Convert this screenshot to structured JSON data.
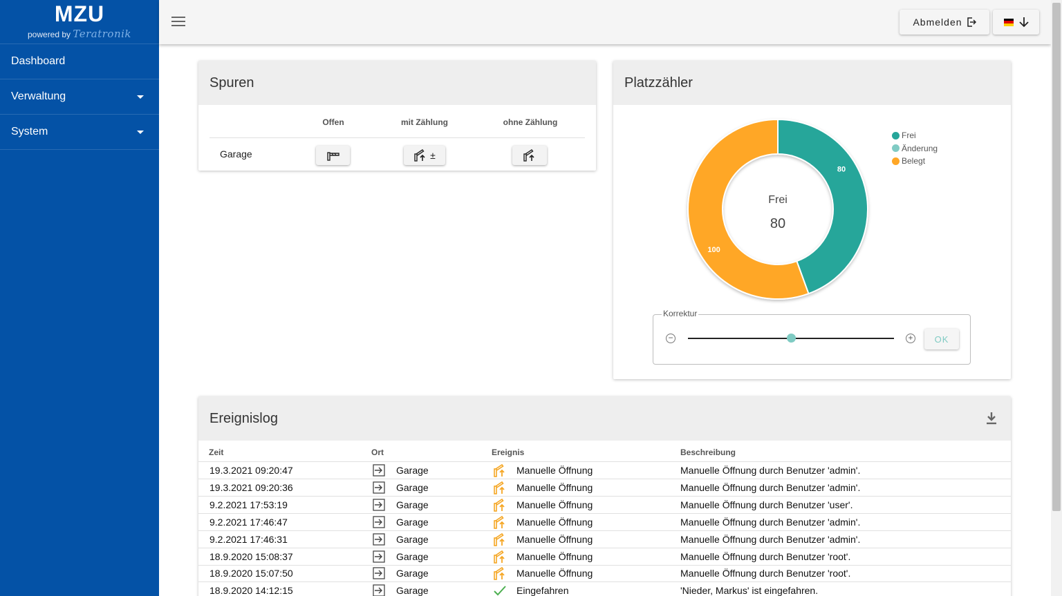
{
  "sidebar": {
    "brand": "MZU",
    "powered_by": "powered by",
    "logo_text": "Teratronik",
    "items": [
      {
        "label": "Dashboard",
        "has_submenu": false
      },
      {
        "label": "Verwaltung",
        "has_submenu": true
      },
      {
        "label": "System",
        "has_submenu": true
      }
    ]
  },
  "header": {
    "logout_label": "Abmelden",
    "language_flag": "de"
  },
  "spuren": {
    "title": "Spuren",
    "columns": [
      "Offen",
      "mit Zählung",
      "ohne Zählung"
    ],
    "rows": [
      {
        "label": "Garage",
        "mit_zaehlung_suffix": "±"
      }
    ]
  },
  "platzzaehler": {
    "title": "Platzzähler",
    "center_label": "Frei",
    "center_value": "80",
    "korrektur_label": "Korrektur",
    "ok_label": "OK",
    "slider_position": 0.5,
    "colors": {
      "frei": "#26a69a",
      "aenderung": "#80cbc4",
      "belegt": "#ffa726"
    },
    "chart_data": {
      "type": "pie",
      "donut": true,
      "categories": [
        "Frei",
        "Änderung",
        "Belegt"
      ],
      "values": [
        80,
        0,
        100
      ],
      "data_labels": [
        "80",
        "",
        "100"
      ],
      "legend": "top-right"
    }
  },
  "ereignislog": {
    "title": "Ereignislog",
    "headers": {
      "zeit": "Zeit",
      "ort": "Ort",
      "ereignis": "Ereignis",
      "beschreibung": "Beschreibung"
    },
    "rows": [
      {
        "zeit": "19.3.2021 09:20:47",
        "ort": "Garage",
        "icon": "barrier-up-icon",
        "ereignis": "Manuelle Öffnung",
        "beschreibung": "Manuelle Öffnung durch Benutzer 'admin'."
      },
      {
        "zeit": "19.3.2021 09:20:36",
        "ort": "Garage",
        "icon": "barrier-up-icon",
        "ereignis": "Manuelle Öffnung",
        "beschreibung": "Manuelle Öffnung durch Benutzer 'admin'."
      },
      {
        "zeit": "9.2.2021 17:53:19",
        "ort": "Garage",
        "icon": "barrier-up-icon",
        "ereignis": "Manuelle Öffnung",
        "beschreibung": "Manuelle Öffnung durch Benutzer 'user'."
      },
      {
        "zeit": "9.2.2021 17:46:47",
        "ort": "Garage",
        "icon": "barrier-up-icon",
        "ereignis": "Manuelle Öffnung",
        "beschreibung": "Manuelle Öffnung durch Benutzer 'admin'."
      },
      {
        "zeit": "9.2.2021 17:46:31",
        "ort": "Garage",
        "icon": "barrier-up-icon",
        "ereignis": "Manuelle Öffnung",
        "beschreibung": "Manuelle Öffnung durch Benutzer 'admin'."
      },
      {
        "zeit": "18.9.2020 15:08:37",
        "ort": "Garage",
        "icon": "barrier-up-icon",
        "ereignis": "Manuelle Öffnung",
        "beschreibung": "Manuelle Öffnung durch Benutzer 'root'."
      },
      {
        "zeit": "18.9.2020 15:07:50",
        "ort": "Garage",
        "icon": "barrier-up-icon",
        "ereignis": "Manuelle Öffnung",
        "beschreibung": "Manuelle Öffnung durch Benutzer 'root'."
      },
      {
        "zeit": "18.9.2020 14:12:15",
        "ort": "Garage",
        "icon": "checkmark-icon",
        "ereignis": "Eingefahren",
        "beschreibung": "'Nieder, Markus' ist eingefahren."
      }
    ]
  }
}
